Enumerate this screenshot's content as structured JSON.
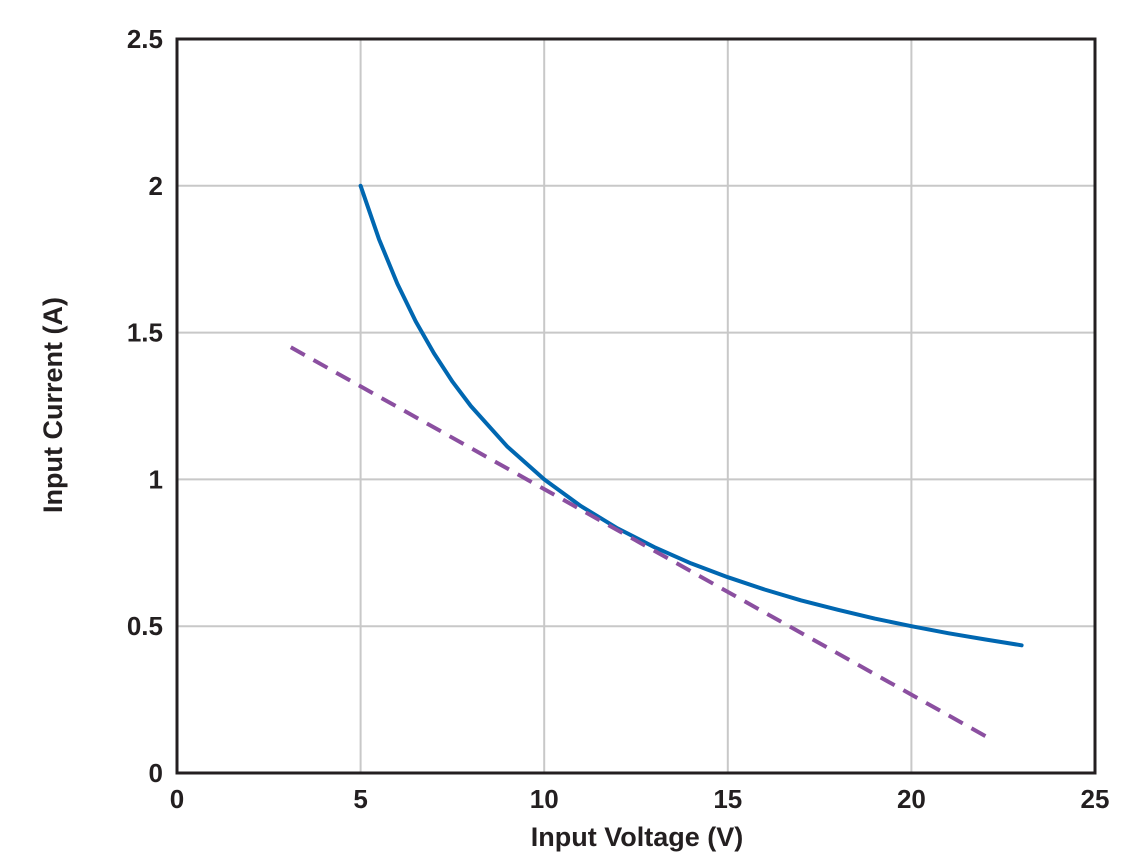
{
  "chart_data": {
    "type": "line",
    "title": "",
    "xlabel": "Input Voltage (V)",
    "ylabel": "Input Current (A)",
    "xlim": [
      0,
      25
    ],
    "ylim": [
      0,
      2.5
    ],
    "grid": true,
    "legend": "none",
    "x_ticks": [
      {
        "value": 0,
        "label": "0"
      },
      {
        "value": 5,
        "label": "5"
      },
      {
        "value": 10,
        "label": "10"
      },
      {
        "value": 15,
        "label": "15"
      },
      {
        "value": 20,
        "label": "20"
      },
      {
        "value": 25,
        "label": "25"
      }
    ],
    "y_ticks": [
      {
        "value": 0,
        "label": "0"
      },
      {
        "value": 0.5,
        "label": "0.5"
      },
      {
        "value": 1,
        "label": "1"
      },
      {
        "value": 1.5,
        "label": "1.5"
      },
      {
        "value": 2,
        "label": "2"
      },
      {
        "value": 2.5,
        "label": "2.5"
      }
    ],
    "series": [
      {
        "color": "#0067b1",
        "style": "solid",
        "x": [
          5,
          5.5,
          6,
          6.5,
          7,
          7.5,
          8,
          9,
          10,
          11,
          12,
          13,
          14,
          15,
          16,
          17,
          18,
          19,
          20,
          21,
          22,
          23
        ],
        "y": [
          2.0,
          1.818,
          1.667,
          1.538,
          1.429,
          1.333,
          1.25,
          1.111,
          1.0,
          0.909,
          0.833,
          0.769,
          0.714,
          0.667,
          0.625,
          0.588,
          0.556,
          0.526,
          0.5,
          0.476,
          0.455,
          0.435
        ]
      },
      {
        "color": "#8b4fa0",
        "style": "dashed",
        "x": [
          3.1,
          22.1
        ],
        "y": [
          1.45,
          0.12
        ]
      }
    ]
  }
}
